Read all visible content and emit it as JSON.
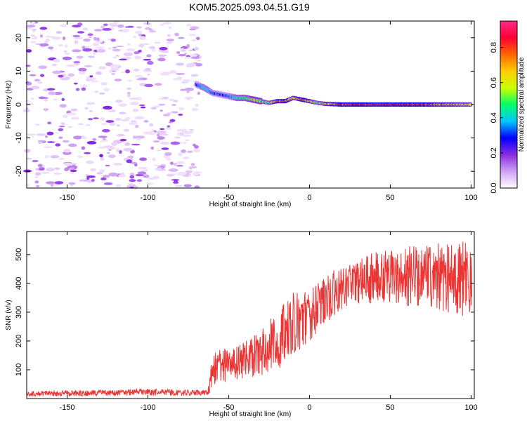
{
  "title": "KOM5.2025.093.04.51.G19",
  "chart_data": [
    {
      "type": "heatmap",
      "title": "KOM5.2025.093.04.51.G19",
      "xlabel": "Height of straight line (km)",
      "ylabel": "Frequency (Hz)",
      "xlim": [
        -175,
        102
      ],
      "ylim": [
        -25,
        25
      ],
      "x_ticks": [
        -150,
        -100,
        -50,
        0,
        50,
        100
      ],
      "y_ticks": [
        -20,
        -10,
        0,
        10,
        20
      ],
      "colorbar": {
        "label": "Normalized spectral amplitude",
        "range": [
          0,
          0.95
        ],
        "ticks": [
          0.0,
          0.2,
          0.4,
          0.6,
          0.8
        ],
        "colormap": [
          "#ffffff",
          "#cfa0f5",
          "#8a2be2",
          "#0000ff",
          "#00c8ff",
          "#00ff66",
          "#ccff00",
          "#ffcc00",
          "#ff6600",
          "#ff0033",
          "#ff2a8a"
        ]
      },
      "noise_region_x": [
        -175,
        -68
      ],
      "signal_ridge": {
        "x": [
          -70,
          -65,
          -60,
          -55,
          -50,
          -45,
          -40,
          -35,
          -30,
          -25,
          -20,
          -15,
          -10,
          -5,
          0,
          5,
          10,
          20,
          30,
          40,
          50,
          60,
          70,
          80,
          90,
          100
        ],
        "freq": [
          6,
          5,
          3.5,
          3,
          2.5,
          2,
          2,
          1.5,
          1,
          0.5,
          1,
          1,
          2,
          1.5,
          1,
          0.5,
          0.2,
          0,
          0,
          0,
          0,
          0,
          0,
          0,
          0,
          0
        ],
        "amp": [
          0.3,
          0.45,
          0.35,
          0.3,
          0.35,
          0.45,
          0.5,
          0.6,
          0.55,
          0.5,
          0.8,
          0.85,
          0.6,
          0.85,
          0.7,
          0.5,
          0.65,
          0.85,
          0.85,
          0.9,
          0.9,
          0.85,
          0.85,
          0.75,
          0.7,
          0.6
        ]
      }
    },
    {
      "type": "line",
      "xlabel": "Height of straight line (km)",
      "ylabel": "SNR (v/v)",
      "xlim": [
        -175,
        102
      ],
      "ylim": [
        0,
        580
      ],
      "x_ticks": [
        -150,
        -100,
        -50,
        0,
        50,
        100
      ],
      "y_ticks": [
        100,
        200,
        300,
        400,
        500
      ],
      "color": "#ee3333",
      "envelope": {
        "x": [
          -175,
          -150,
          -120,
          -100,
          -80,
          -63,
          -60,
          -55,
          -50,
          -40,
          -30,
          -20,
          -10,
          0,
          10,
          20,
          30,
          33,
          37,
          43,
          50,
          60,
          70,
          80,
          90,
          100
        ],
        "lower": [
          8,
          8,
          10,
          10,
          10,
          10,
          30,
          50,
          60,
          70,
          80,
          100,
          140,
          200,
          260,
          300,
          330,
          330,
          330,
          330,
          330,
          320,
          310,
          300,
          290,
          280
        ],
        "upper": [
          25,
          28,
          30,
          35,
          30,
          30,
          150,
          180,
          170,
          200,
          250,
          300,
          370,
          380,
          430,
          460,
          480,
          490,
          500,
          520,
          520,
          530,
          535,
          540,
          550,
          555
        ]
      }
    }
  ]
}
